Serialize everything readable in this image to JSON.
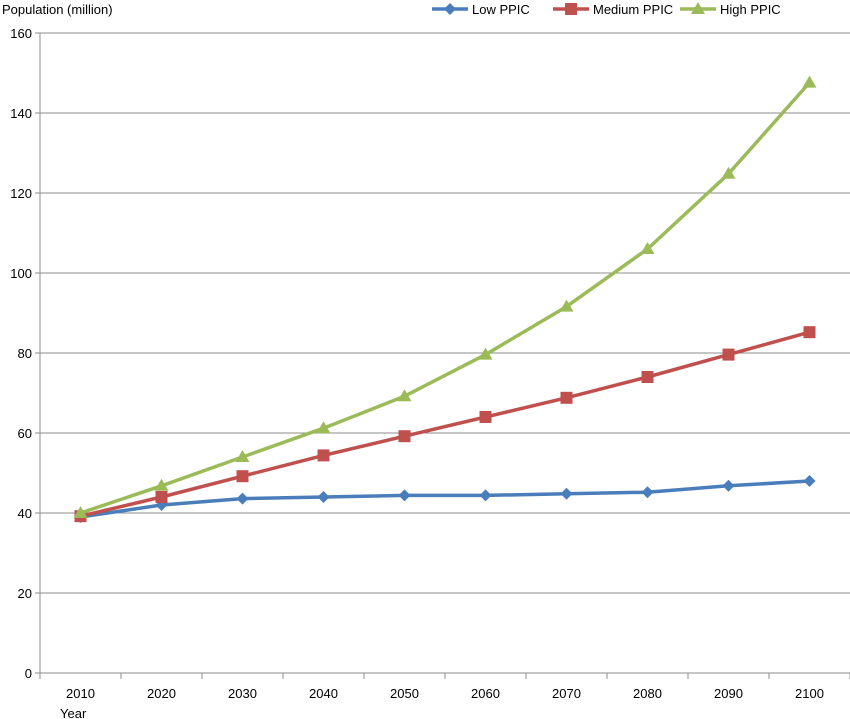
{
  "chart_data": {
    "type": "line",
    "ylabel": "Population (million)",
    "xlabel": "Year",
    "x": [
      "2010",
      "2020",
      "2030",
      "2040",
      "2050",
      "2060",
      "2070",
      "2080",
      "2090",
      "2100"
    ],
    "ylim": [
      0,
      160
    ],
    "y_ticks": [
      "0",
      "20",
      "40",
      "60",
      "80",
      "100",
      "120",
      "140",
      "160"
    ],
    "grid": "horizontal",
    "legend_position": "top-right",
    "series": [
      {
        "name": "Low PPIC",
        "color": "#4a7ebb",
        "marker": "diamond",
        "values": [
          39.0,
          42.0,
          43.6,
          44.0,
          44.4,
          44.4,
          44.8,
          45.2,
          46.8,
          48.0
        ]
      },
      {
        "name": "Medium PPIC",
        "color": "#c0504d",
        "marker": "square",
        "values": [
          39.2,
          44.0,
          49.2,
          54.4,
          59.2,
          64.0,
          68.8,
          74.0,
          79.6,
          85.2
        ]
      },
      {
        "name": "High PPIC",
        "color": "#9bbb59",
        "marker": "triangle",
        "values": [
          40.0,
          46.8,
          54.0,
          61.2,
          69.2,
          79.6,
          91.6,
          106.0,
          124.8,
          147.6
        ]
      }
    ]
  }
}
